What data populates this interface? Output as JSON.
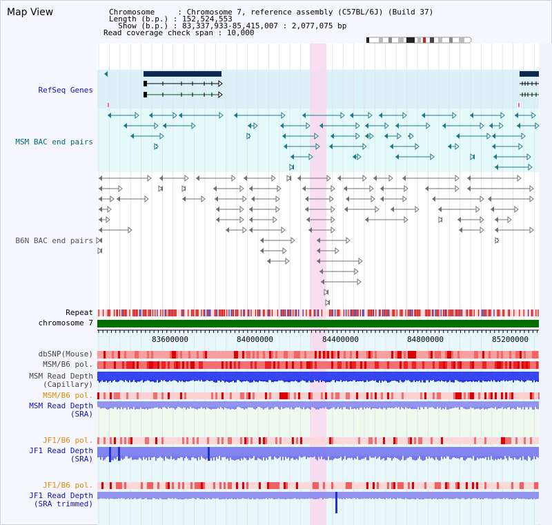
{
  "title": "Map View",
  "info": {
    "chromosome_line": "Chromosome     : Chromosome 7, reference assembly (C57BL/6J) (Build 37)",
    "length_line": "Length (b.p.) : 152,524,553",
    "show_line": "  Show (b.p.) : 83,337,933-85,415,007 : 2,077,075 bp",
    "coverage_line": "Read coverage check span : 10,000"
  },
  "tracks": {
    "refseq": "RefSeq Genes",
    "msm_bac": "MSM BAC end pairs",
    "b6n_bac": "B6N BAC end pairs",
    "repeat": "Repeat",
    "chromosome": "chromosome 7",
    "dbsnp": "dbSNP(Mouse)",
    "msm_b6_pol": "MSM/B6 pol.",
    "msm_depth_cap_1": "MSM Read Depth",
    "msm_depth_cap_2": "(Capillary)",
    "msm_b6_pol2": "MSM/B6 pol.",
    "msm_depth_sra_1": "MSM Read Depth",
    "msm_depth_sra_2": "(SRA)",
    "jf1_b6_pol": "JF1/B6 pol.",
    "jf1_depth_1": "JF1 Read Depth",
    "jf1_depth_2": "(SRA)",
    "jf1_b6_pol2": "JF1/B6 pol.",
    "jf1_trim_1": "JF1 Read Depth",
    "jf1_trim_2": "(SRA trimmed)"
  },
  "axis": {
    "ticks": [
      "83600000",
      "84000000",
      "84400000",
      "84800000",
      "85200000"
    ]
  },
  "colors": {
    "background": "#f6f6ff",
    "refseq_bg": "#dcf0fa",
    "msm_bac_bg": "#e4fafa",
    "highlight": "#f8d8f0",
    "gene_dark": "#0a2850",
    "msm_bac_line": "#1b7a8a",
    "b6n_line": "#707070",
    "chromosome": "#007000",
    "repeat": "#cc1111",
    "label_blue": "#1010c0",
    "label_teal": "#006a7a",
    "label_orange": "#e08a00",
    "pol_red": "#ee4444",
    "depth_blue": "#2222ee"
  }
}
